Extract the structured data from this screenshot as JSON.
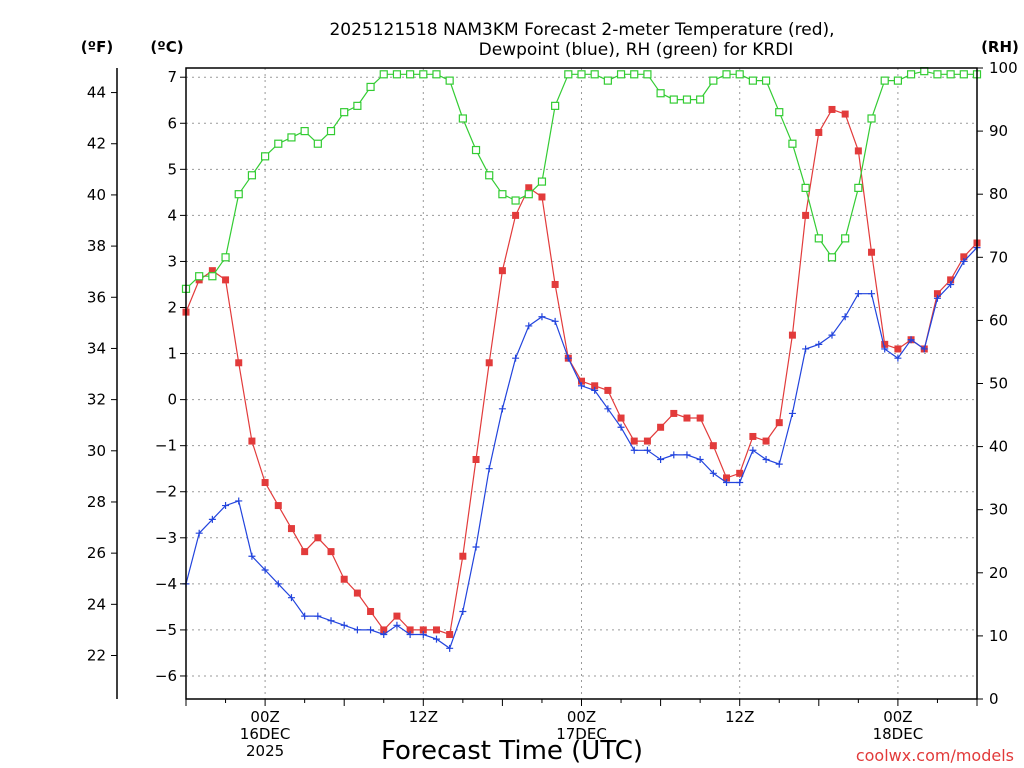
{
  "chart_data": {
    "type": "line",
    "title_line1": "2025121518 NAM3KM Forecast 2-meter Temperature (red),",
    "title_line2": "Dewpoint (blue), RH (green) for KRDI",
    "xlabel": "Forecast Time (UTC)",
    "credit": "coolwx.com/models",
    "units": {
      "fahrenheit": "(ºF)",
      "celsius": "(ºC)",
      "rh": "(RH)"
    },
    "x_hours_from_start": {
      "min": 0,
      "max": 60,
      "step": 1
    },
    "c_range": [
      -6.5,
      7.2
    ],
    "rh_range": [
      0,
      100
    ],
    "c_ticks": [
      -6,
      -5,
      -4,
      -3,
      -2,
      -1,
      0,
      1,
      2,
      3,
      4,
      5,
      6,
      7
    ],
    "c_tick_labels": [
      "−6",
      "−5",
      "−4",
      "−3",
      "−2",
      "−1",
      "0",
      "1",
      "2",
      "3",
      "4",
      "5",
      "6",
      "7"
    ],
    "f_ticks": [
      22,
      24,
      26,
      28,
      30,
      32,
      34,
      36,
      38,
      40,
      42,
      44
    ],
    "rh_ticks": [
      0,
      10,
      20,
      30,
      40,
      50,
      60,
      70,
      80,
      90,
      100
    ],
    "x_ticks": [
      {
        "hour": 6,
        "lines": [
          "00Z",
          "16DEC",
          "2025"
        ]
      },
      {
        "hour": 18,
        "lines": [
          "12Z"
        ]
      },
      {
        "hour": 30,
        "lines": [
          "00Z",
          "17DEC"
        ]
      },
      {
        "hour": 42,
        "lines": [
          "12Z"
        ]
      },
      {
        "hour": 54,
        "lines": [
          "00Z",
          "18DEC"
        ]
      }
    ],
    "series": [
      {
        "name": "Temperature",
        "unit": "C",
        "color": "#e23b3b",
        "marker": "filled-square",
        "values": [
          1.9,
          2.6,
          2.8,
          2.6,
          0.8,
          -0.9,
          -1.8,
          -2.3,
          -2.8,
          -3.3,
          -3.0,
          -3.3,
          -3.9,
          -4.2,
          -4.6,
          -5.0,
          -4.7,
          -5.0,
          -5.0,
          -5.0,
          -5.1,
          -3.4,
          -1.3,
          0.8,
          2.8,
          4.0,
          4.6,
          4.4,
          2.5,
          0.9,
          0.4,
          0.3,
          0.2,
          -0.4,
          -0.9,
          -0.9,
          -0.6,
          -0.3,
          -0.4,
          -0.4,
          -1.0,
          -1.7,
          -1.6,
          -0.8,
          -0.9,
          -0.5,
          1.4,
          4.0,
          5.8,
          6.3,
          6.2,
          5.4,
          3.2,
          1.2,
          1.1,
          1.3,
          1.1,
          2.3,
          2.6,
          3.1,
          3.4
        ]
      },
      {
        "name": "Dewpoint",
        "unit": "C",
        "color": "#2244dd",
        "marker": "plus",
        "values": [
          -4.0,
          -2.9,
          -2.6,
          -2.3,
          -2.2,
          -3.4,
          -3.7,
          -4.0,
          -4.3,
          -4.7,
          -4.7,
          -4.8,
          -4.9,
          -5.0,
          -5.0,
          -5.1,
          -4.9,
          -5.1,
          -5.1,
          -5.2,
          -5.4,
          -4.6,
          -3.2,
          -1.5,
          -0.2,
          0.9,
          1.6,
          1.8,
          1.7,
          0.9,
          0.3,
          0.2,
          -0.2,
          -0.6,
          -1.1,
          -1.1,
          -1.3,
          -1.2,
          -1.2,
          -1.3,
          -1.6,
          -1.8,
          -1.8,
          -1.1,
          -1.3,
          -1.4,
          -0.3,
          1.1,
          1.2,
          1.4,
          1.8,
          2.3,
          2.3,
          1.1,
          0.9,
          1.3,
          1.1,
          2.2,
          2.5,
          3.0,
          3.3
        ]
      },
      {
        "name": "RH",
        "unit": "%",
        "color": "#33cc33",
        "marker": "open-square",
        "values": [
          65,
          67,
          67,
          70,
          80,
          83,
          86,
          88,
          89,
          90,
          88,
          90,
          93,
          94,
          97,
          99,
          99,
          99,
          99,
          99,
          98,
          92,
          87,
          83,
          80,
          79,
          80,
          82,
          94,
          99,
          99,
          99,
          98,
          99,
          99,
          99,
          96,
          95,
          95,
          95,
          98,
          99,
          99,
          98,
          98,
          93,
          88,
          81,
          73,
          70,
          73,
          81,
          92,
          98,
          98,
          99,
          99.5,
          99,
          99,
          99,
          99
        ]
      }
    ]
  }
}
